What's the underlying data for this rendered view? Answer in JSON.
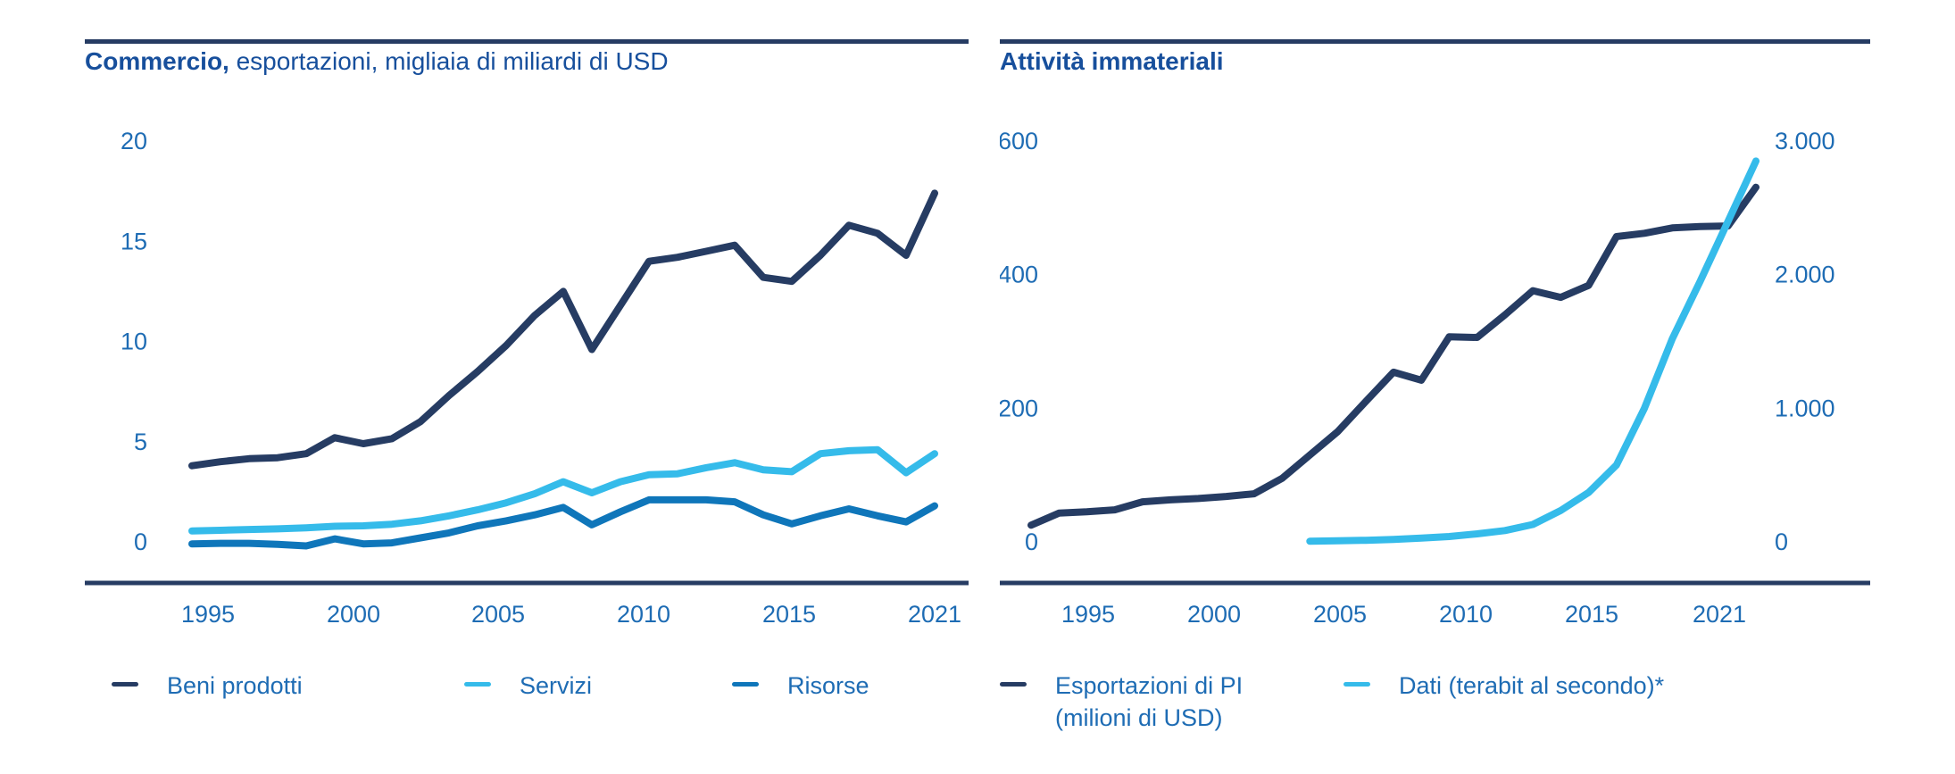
{
  "page": {
    "background": "#ffffff"
  },
  "colors": {
    "navy": "#263c63",
    "cyan": "#35bbea",
    "blue": "#0f76ba",
    "tick_label": "#1e6cb4",
    "title": "#174f9c"
  },
  "chart_data": [
    {
      "type": "line",
      "title_bold": "Commercio,",
      "title_rest": " esportazioni, migliaia di miliardi di USD",
      "x_years": [
        1995,
        1996,
        1997,
        1998,
        1999,
        2000,
        2001,
        2002,
        2003,
        2004,
        2005,
        2006,
        2007,
        2008,
        2009,
        2010,
        2011,
        2012,
        2013,
        2014,
        2015,
        2016,
        2017,
        2018,
        2019,
        2020,
        2021
      ],
      "x_tick_labels": [
        "1995",
        "2000",
        "2005",
        "2010",
        "2015",
        "2021"
      ],
      "ylim": [
        0,
        20
      ],
      "y_tick_values": [
        0,
        5,
        10,
        15,
        20
      ],
      "y_tick_labels": [
        "0",
        "5",
        "10",
        "15",
        "20"
      ],
      "grid": false,
      "legend_position": "bottom",
      "series": [
        {
          "name": "Beni prodotti",
          "color": "#263c63",
          "values": [
            3.8,
            4.0,
            4.15,
            4.2,
            4.4,
            5.2,
            4.9,
            5.15,
            6.0,
            7.3,
            8.5,
            9.8,
            11.3,
            12.5,
            9.6,
            11.8,
            14.0,
            14.2,
            14.5,
            14.8,
            13.2,
            13.0,
            14.3,
            15.8,
            15.4,
            14.3,
            17.4
          ]
        },
        {
          "name": "Servizi",
          "color": "#35bbea",
          "values": [
            0.55,
            0.58,
            0.62,
            0.65,
            0.7,
            0.78,
            0.8,
            0.88,
            1.05,
            1.3,
            1.6,
            1.95,
            2.4,
            3.0,
            2.45,
            3.0,
            3.35,
            3.4,
            3.7,
            3.95,
            3.6,
            3.5,
            4.4,
            4.55,
            4.6,
            3.45,
            4.4
          ]
        },
        {
          "name": "Risorse",
          "color": "#0f76ba",
          "values": [
            -0.1,
            -0.07,
            -0.07,
            -0.12,
            -0.2,
            0.15,
            -0.1,
            -0.05,
            0.2,
            0.45,
            0.8,
            1.05,
            1.35,
            1.72,
            0.85,
            1.5,
            2.1,
            2.1,
            2.1,
            2.0,
            1.35,
            0.9,
            1.3,
            1.65,
            1.3,
            1.0,
            1.8
          ]
        }
      ]
    },
    {
      "type": "line",
      "title_bold": "Attività immateriali",
      "title_rest": "",
      "x_years": [
        1995,
        1996,
        1997,
        1998,
        1999,
        2000,
        2001,
        2002,
        2003,
        2004,
        2005,
        2006,
        2007,
        2008,
        2009,
        2010,
        2011,
        2012,
        2013,
        2014,
        2015,
        2016,
        2017,
        2018,
        2019,
        2020,
        2021
      ],
      "x_tick_labels": [
        "1995",
        "2000",
        "2005",
        "2010",
        "2015",
        "2021"
      ],
      "ylim_left": [
        0,
        600
      ],
      "y_tick_values_left": [
        0,
        200,
        400,
        600
      ],
      "y_tick_labels_left": [
        "0",
        "200",
        "400",
        "600"
      ],
      "ylim_right": [
        0,
        3000
      ],
      "y_tick_values_right": [
        0,
        1000,
        2000,
        3000
      ],
      "y_tick_labels_right": [
        "0",
        "1.000",
        "2.000",
        "3.000"
      ],
      "grid": false,
      "legend_position": "bottom",
      "series": [
        {
          "name": "Esportazioni di PI (milioni di USD)",
          "legend_lines": [
            "Esportazioni di PI",
            "(milioni di USD)"
          ],
          "axis": "left",
          "color": "#263c63",
          "values": [
            25,
            43,
            45,
            48,
            60,
            63,
            65,
            68,
            72,
            95,
            130,
            165,
            210,
            254,
            242,
            307,
            306,
            340,
            376,
            366,
            384,
            457,
            462,
            470,
            472,
            473,
            531
          ]
        },
        {
          "name": "Dati (terabit al secondo)*",
          "axis": "right",
          "color": "#35bbea",
          "values": [
            null,
            null,
            null,
            null,
            null,
            null,
            null,
            null,
            null,
            null,
            5,
            8,
            12,
            18,
            28,
            40,
            60,
            85,
            130,
            235,
            370,
            575,
            1000,
            1520,
            1950,
            2400,
            2850
          ]
        }
      ]
    }
  ]
}
